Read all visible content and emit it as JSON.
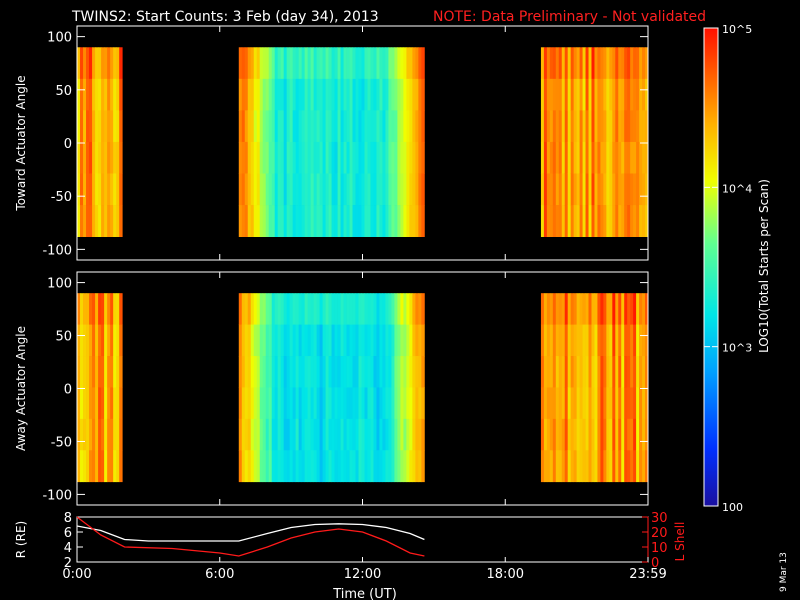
{
  "header": {
    "title": "TWINS2: Start Counts:  3 Feb (day  34), 2013",
    "note": "NOTE: Data Preliminary - Not validated",
    "note_color": "#ff2020"
  },
  "side_date": "9 Mar 13",
  "colorbar": {
    "label": "LOG10(Total Starts per Scan)",
    "ticks": [
      {
        "value": 100,
        "label": "100"
      },
      {
        "value": 1000,
        "label": "10^3"
      },
      {
        "value": 10000,
        "label": "10^4"
      },
      {
        "value": 100000,
        "label": "10^5"
      }
    ],
    "range": [
      100,
      100000
    ],
    "scale": "log"
  },
  "x_axis": {
    "label": "Time (UT)",
    "ticks": [
      {
        "hour": 0,
        "label": "0:00"
      },
      {
        "hour": 6,
        "label": "6:00"
      },
      {
        "hour": 12,
        "label": "12:00"
      },
      {
        "hour": 18,
        "label": "18:00"
      },
      {
        "hour": 24,
        "label": "23:59"
      }
    ]
  },
  "chart_data": [
    {
      "type": "heatmap",
      "ylabel": "Toward Actuator Angle",
      "xlim": [
        0,
        24
      ],
      "ylim": [
        -110,
        110
      ],
      "y_ticks": [
        -100,
        -50,
        0,
        50,
        100
      ],
      "data_blocks": [
        {
          "t_start": 0.0,
          "t_end": 1.9,
          "angle_range": [
            -88,
            90
          ],
          "typical_counts": 30000
        },
        {
          "t_start": 6.8,
          "t_end": 14.6,
          "angle_range": [
            -88,
            90
          ],
          "typical_counts": 2000
        },
        {
          "t_start": 19.5,
          "t_end": 24.0,
          "angle_range": [
            -88,
            90
          ],
          "typical_counts": 30000
        }
      ]
    },
    {
      "type": "heatmap",
      "ylabel": "Away Actuator Angle",
      "xlim": [
        0,
        24
      ],
      "ylim": [
        -110,
        110
      ],
      "y_ticks": [
        -100,
        -50,
        0,
        50,
        100
      ],
      "data_blocks": [
        {
          "t_start": 0.0,
          "t_end": 1.9,
          "angle_range": [
            -88,
            90
          ],
          "typical_counts": 30000
        },
        {
          "t_start": 6.8,
          "t_end": 14.6,
          "angle_range": [
            -88,
            90
          ],
          "typical_counts": 1500
        },
        {
          "t_start": 19.5,
          "t_end": 24.0,
          "angle_range": [
            -88,
            90
          ],
          "typical_counts": 30000
        }
      ]
    },
    {
      "type": "line",
      "ylabel": "R (RE)",
      "ylabel_right": "L Shell",
      "xlim": [
        0,
        24
      ],
      "ylim": [
        2,
        8
      ],
      "ylim_right": [
        0,
        30
      ],
      "y_ticks": [
        2,
        4,
        6,
        8
      ],
      "y_ticks_right": [
        0,
        10,
        20,
        30
      ],
      "series": [
        {
          "name": "R (RE)",
          "axis": "left",
          "color": "#ffffff",
          "x": [
            0.0,
            1.0,
            2.0,
            3.0,
            4.0,
            5.0,
            6.0,
            6.8,
            8.0,
            9.0,
            10.0,
            11.0,
            12.0,
            13.0,
            14.0,
            14.6
          ],
          "y": [
            6.8,
            6.2,
            5.0,
            4.8,
            4.8,
            4.8,
            4.8,
            4.8,
            5.8,
            6.6,
            7.0,
            7.1,
            7.0,
            6.6,
            5.8,
            5.0
          ]
        },
        {
          "name": "L Shell",
          "axis": "right",
          "color": "#ff1a1a",
          "x": [
            0.0,
            1.0,
            2.0,
            4.0,
            6.0,
            6.8,
            8.0,
            9.0,
            10.0,
            11.0,
            12.0,
            13.0,
            14.0,
            14.6
          ],
          "y": [
            30,
            18,
            10,
            9,
            6,
            4,
            10,
            16,
            20,
            22,
            20,
            14,
            6,
            4
          ]
        }
      ]
    }
  ]
}
